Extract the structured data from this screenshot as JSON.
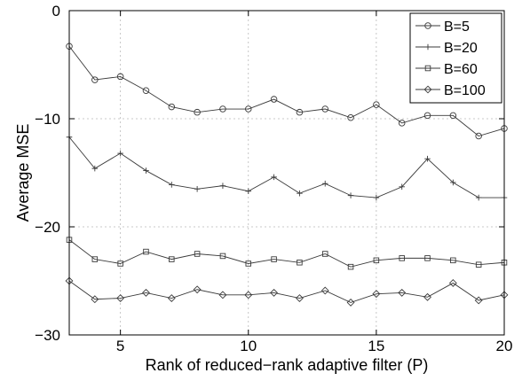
{
  "chart_data": {
    "type": "line",
    "title": "",
    "xlabel": "Rank of reduced−rank adaptive filter (P)",
    "ylabel": "Average MSE",
    "xlim": [
      3,
      20
    ],
    "ylim": [
      -30,
      0
    ],
    "xticks": [
      5,
      10,
      15,
      20
    ],
    "yticks": [
      -30,
      -20,
      -10,
      0
    ],
    "xtick_labels": [
      "5",
      "10",
      "15",
      "20"
    ],
    "ytick_labels": [
      "−30",
      "−20",
      "−10",
      "0"
    ],
    "grid": true,
    "legend_position": "top-right",
    "x": [
      3,
      4,
      5,
      6,
      7,
      8,
      9,
      10,
      11,
      12,
      13,
      14,
      15,
      16,
      17,
      18,
      19,
      20
    ],
    "series": [
      {
        "name": "B=5",
        "marker": "circle",
        "values": [
          -3.3,
          -6.4,
          -6.1,
          -7.4,
          -8.9,
          -9.4,
          -9.1,
          -9.1,
          -8.2,
          -9.4,
          -9.1,
          -9.9,
          -8.7,
          -10.4,
          -9.7,
          -9.7,
          -11.6,
          -10.9
        ]
      },
      {
        "name": "B=20",
        "marker": "plus",
        "values": [
          -11.7,
          -14.6,
          -13.2,
          -14.8,
          -16.1,
          -16.5,
          -16.2,
          -16.7,
          -15.4,
          -16.9,
          -16.0,
          -17.1,
          -17.3,
          -16.3,
          -13.7,
          -15.9,
          -17.3,
          -17.3
        ]
      },
      {
        "name": "B=60",
        "marker": "square",
        "values": [
          -21.2,
          -23.0,
          -23.4,
          -22.3,
          -23.0,
          -22.5,
          -22.7,
          -23.4,
          -23.0,
          -23.3,
          -22.5,
          -23.7,
          -23.1,
          -22.9,
          -22.9,
          -23.1,
          -23.5,
          -23.3
        ]
      },
      {
        "name": "B=100",
        "marker": "diamond",
        "values": [
          -25.0,
          -26.7,
          -26.6,
          -26.1,
          -26.6,
          -25.8,
          -26.3,
          -26.3,
          -26.1,
          -26.6,
          -25.9,
          -27.0,
          -26.2,
          -26.1,
          -26.5,
          -25.2,
          -26.8,
          -26.3
        ]
      }
    ]
  }
}
